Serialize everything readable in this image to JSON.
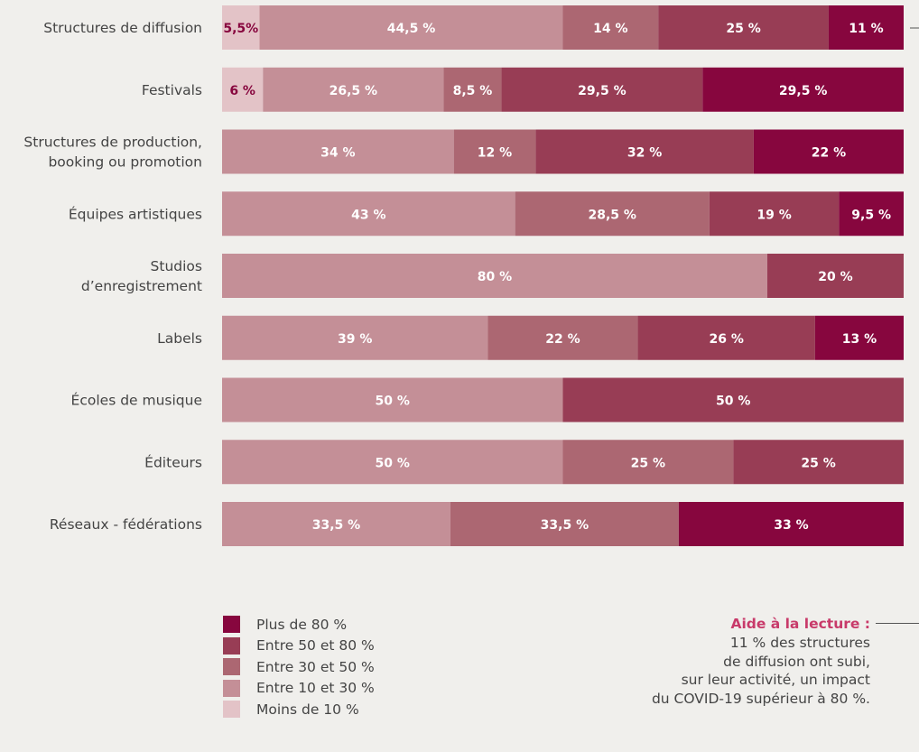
{
  "colors": {
    "lt10": "#e3c3c7",
    "c10_30": "#c48f97",
    "c30_50": "#ac6772",
    "c50_80": "#983d55",
    "gt80": "#87063e",
    "label_dark": "#87063e",
    "label_light": "#ffffff",
    "text": "#444444"
  },
  "legend": [
    {
      "label": "Plus de 80 %",
      "color": "#87063e"
    },
    {
      "label": "Entre 50 et 80 %",
      "color": "#983d55"
    },
    {
      "label": "Entre 30 et 50 %",
      "color": "#ac6772"
    },
    {
      "label": "Entre 10 et 30 %",
      "color": "#c48f97"
    },
    {
      "label": "Moins de 10 %",
      "color": "#e3c3c7"
    }
  ],
  "reading_help": {
    "title": "Aide à la lecture :",
    "lines": [
      "11 % des structures",
      "de diffusion ont subi,",
      "sur leur activité, un impact",
      "du COVID-19 supérieur à 80 %."
    ]
  },
  "chart_data": {
    "type": "bar",
    "orientation": "horizontal",
    "stacked": true,
    "categories": [
      [
        "Structures de diffusion"
      ],
      [
        "Festivals"
      ],
      [
        "Structures de production,",
        "booking ou promotion"
      ],
      [
        "Équipes artistiques"
      ],
      [
        "Studios",
        "d’enregistrement"
      ],
      [
        "Labels"
      ],
      [
        "Écoles de musique"
      ],
      [
        "Éditeurs"
      ],
      [
        "Réseaux - fédérations"
      ]
    ],
    "series": [
      {
        "name": "Moins de 10 %",
        "color": "#e3c3c7",
        "values": [
          5.5,
          6,
          0,
          0,
          0,
          0,
          0,
          0,
          0
        ]
      },
      {
        "name": "Entre 10 et 30 %",
        "color": "#c48f97",
        "values": [
          44.5,
          26.5,
          34,
          43,
          80,
          39,
          50,
          50,
          33.5
        ]
      },
      {
        "name": "Entre 30 et 50 %",
        "color": "#ac6772",
        "values": [
          14,
          8.5,
          12,
          28.5,
          0,
          22,
          0,
          25,
          33.5
        ]
      },
      {
        "name": "Entre 50 et 80 %",
        "color": "#983d55",
        "values": [
          25,
          29.5,
          32,
          19,
          20,
          26,
          50,
          25,
          0
        ]
      },
      {
        "name": "Plus de 80 %",
        "color": "#87063e",
        "values": [
          11,
          29.5,
          22,
          9.5,
          0,
          13,
          0,
          0,
          33
        ]
      }
    ],
    "value_labels": [
      [
        "5,5%",
        "44,5 %",
        "14 %",
        "25 %",
        "11 %"
      ],
      [
        "6 %",
        "26,5 %",
        "8,5 %",
        "29,5 %",
        "29,5 %"
      ],
      [
        "",
        "34 %",
        "12 %",
        "32 %",
        "22 %"
      ],
      [
        "",
        "43 %",
        "28,5 %",
        "19 %",
        "9,5 %"
      ],
      [
        "",
        "80 %",
        "",
        "20 %",
        ""
      ],
      [
        "",
        "39 %",
        "22 %",
        "26 %",
        "13 %"
      ],
      [
        "",
        "50 %",
        "",
        "50 %",
        ""
      ],
      [
        "",
        "50 %",
        "25 %",
        "25 %",
        ""
      ],
      [
        "",
        "33,5 %",
        "33,5 %",
        "",
        "33 %"
      ]
    ],
    "xlim": [
      0,
      100
    ]
  }
}
